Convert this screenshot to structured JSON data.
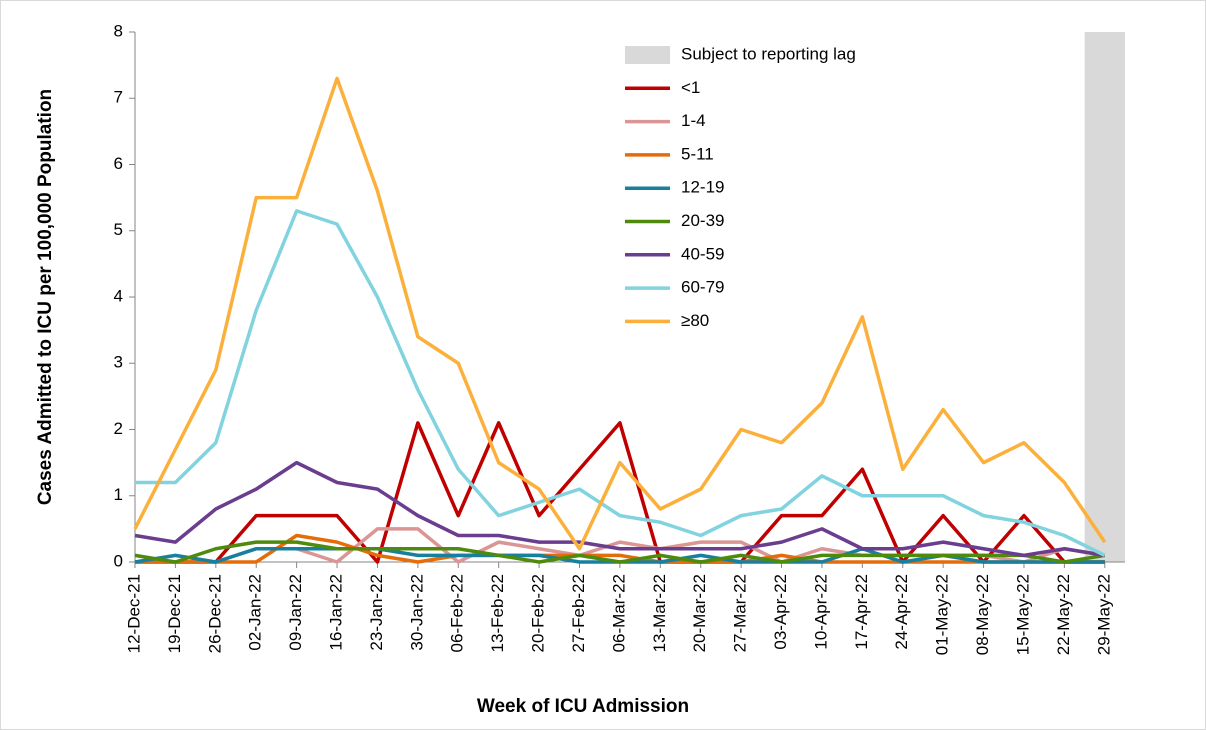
{
  "chart_data": {
    "type": "line",
    "xlabel": "Week of ICU Admission",
    "ylabel": "Cases Admitted to ICU per 100,000 Population",
    "categories": [
      "12-Dec-21",
      "19-Dec-21",
      "26-Dec-21",
      "02-Jan-22",
      "09-Jan-22",
      "16-Jan-22",
      "23-Jan-22",
      "30-Jan-22",
      "06-Feb-22",
      "13-Feb-22",
      "20-Feb-22",
      "27-Feb-22",
      "06-Mar-22",
      "13-Mar-22",
      "20-Mar-22",
      "27-Mar-22",
      "03-Apr-22",
      "10-Apr-22",
      "17-Apr-22",
      "24-Apr-22",
      "01-May-22",
      "08-May-22",
      "15-May-22",
      "22-May-22",
      "29-May-22"
    ],
    "ylim": [
      0,
      8
    ],
    "yticks": [
      0,
      1,
      2,
      3,
      4,
      5,
      6,
      7,
      8
    ],
    "lag_band": {
      "name": "Subject to reporting lag",
      "color": "#d9d9d9",
      "values": [
        null,
        null,
        null,
        null,
        null,
        null,
        null,
        null,
        null,
        null,
        null,
        null,
        null,
        null,
        null,
        null,
        null,
        null,
        null,
        null,
        null,
        null,
        null,
        null,
        8
      ]
    },
    "series": [
      {
        "name": "<1",
        "color": "#c00000",
        "values": [
          0,
          0,
          0,
          0.7,
          0.7,
          0.7,
          0,
          2.1,
          0.7,
          2.1,
          0.7,
          1.4,
          2.1,
          0,
          0,
          0,
          0.7,
          0.7,
          1.4,
          0,
          0.7,
          0,
          0.7,
          0,
          0
        ]
      },
      {
        "name": "1-4",
        "color": "#da9694",
        "values": [
          0,
          0,
          0,
          0.2,
          0.2,
          0,
          0.5,
          0.5,
          0,
          0.3,
          0.2,
          0.1,
          0.3,
          0.2,
          0.3,
          0.3,
          0,
          0.2,
          0.1,
          0.1,
          0.1,
          0.1,
          0,
          0.2,
          0.1
        ]
      },
      {
        "name": "5-11",
        "color": "#e46c0a",
        "values": [
          0,
          0,
          0,
          0,
          0.4,
          0.3,
          0.1,
          0,
          0.1,
          0.1,
          0.1,
          0.1,
          0.1,
          0,
          0,
          0,
          0.1,
          0,
          0,
          0,
          0,
          0,
          0,
          0,
          0
        ]
      },
      {
        "name": "12-19",
        "color": "#17809e",
        "values": [
          0,
          0.1,
          0,
          0.2,
          0.2,
          0.2,
          0.2,
          0.1,
          0.1,
          0.1,
          0.1,
          0,
          0,
          0,
          0.1,
          0,
          0,
          0,
          0.2,
          0,
          0.1,
          0,
          0,
          0,
          0
        ]
      },
      {
        "name": "20-39",
        "color": "#4e8a0e",
        "values": [
          0.1,
          0,
          0.2,
          0.3,
          0.3,
          0.2,
          0.2,
          0.2,
          0.2,
          0.1,
          0,
          0.1,
          0,
          0.1,
          0,
          0.1,
          0,
          0.1,
          0.1,
          0.1,
          0.1,
          0.1,
          0.1,
          0,
          0.1
        ]
      },
      {
        "name": "40-59",
        "color": "#6a3d8f",
        "values": [
          0.4,
          0.3,
          0.8,
          1.1,
          1.5,
          1.2,
          1.1,
          0.7,
          0.4,
          0.4,
          0.3,
          0.3,
          0.2,
          0.2,
          0.2,
          0.2,
          0.3,
          0.5,
          0.2,
          0.2,
          0.3,
          0.2,
          0.1,
          0.2,
          0.1
        ]
      },
      {
        "name": "60-79",
        "color": "#80d3df",
        "values": [
          1.2,
          1.2,
          1.8,
          3.8,
          5.3,
          5.1,
          4.0,
          2.6,
          1.4,
          0.7,
          0.9,
          1.1,
          0.7,
          0.6,
          0.4,
          0.7,
          0.8,
          1.3,
          1.0,
          1.0,
          1.0,
          0.7,
          0.6,
          0.4,
          0.1
        ]
      },
      {
        "name": "≥80",
        "color": "#fbb03b",
        "values": [
          0.5,
          1.7,
          2.9,
          5.5,
          5.5,
          7.3,
          5.6,
          3.4,
          3.0,
          1.5,
          1.1,
          0.2,
          1.5,
          0.8,
          1.1,
          2.0,
          1.8,
          2.4,
          3.7,
          1.4,
          2.3,
          1.5,
          1.8,
          1.2,
          0.3
        ]
      }
    ]
  }
}
